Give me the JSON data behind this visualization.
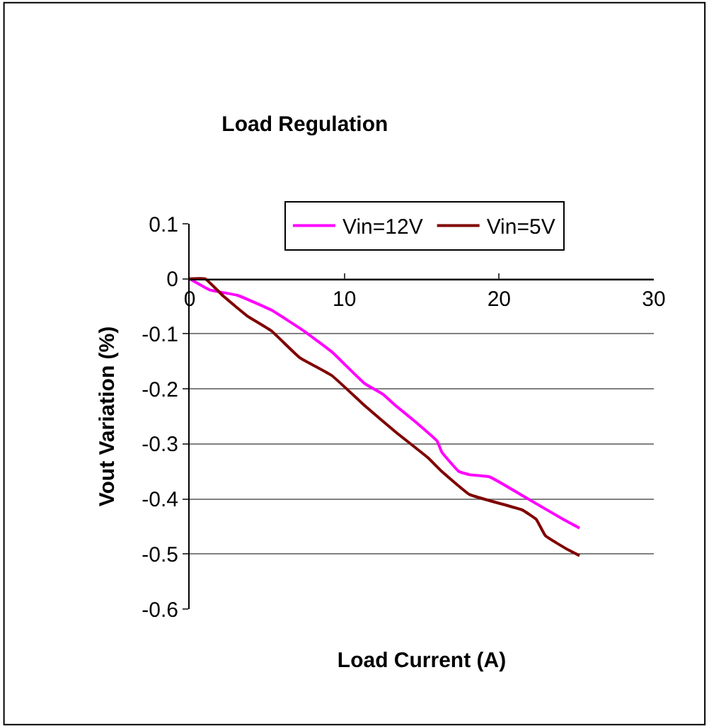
{
  "chart_data": {
    "type": "line",
    "title": "Load Regulation",
    "xlabel": "Load Current (A)",
    "ylabel": "Vout Variation (%)",
    "xlim": [
      0,
      30
    ],
    "xticks": [
      0,
      10,
      20,
      30
    ],
    "ylim": [
      -0.6,
      0.1
    ],
    "yticks": [
      -0.6,
      -0.5,
      -0.4,
      -0.3,
      -0.2,
      -0.1,
      0,
      0.1
    ],
    "grid": "y",
    "legend": "top",
    "marker": "none",
    "line_style": "solid",
    "series": [
      {
        "name": "Vin=12V",
        "color": "#ff00ff",
        "x": [
          0,
          1.3,
          3.1,
          5.3,
          7.4,
          9.2,
          11.3,
          12.5,
          13.3,
          14.6,
          16.0,
          16.3,
          17.4,
          18.1,
          19.4,
          21.7,
          24.2,
          25.2
        ],
        "values": [
          0,
          -0.02,
          -0.03,
          -0.057,
          -0.095,
          -0.133,
          -0.19,
          -0.21,
          -0.23,
          -0.26,
          -0.295,
          -0.315,
          -0.35,
          -0.356,
          -0.36,
          -0.397,
          -0.438,
          -0.453
        ]
      },
      {
        "name": "Vin=5V",
        "color": "#800000",
        "x": [
          0,
          1,
          2.2,
          3.7,
          5.3,
          7.1,
          9.2,
          11.3,
          13.3,
          15.4,
          16.3,
          18.1,
          21.5,
          22.4,
          23,
          24.5,
          25.2
        ],
        "values": [
          0,
          0,
          -0.032,
          -0.067,
          -0.095,
          -0.143,
          -0.176,
          -0.23,
          -0.278,
          -0.325,
          -0.35,
          -0.392,
          -0.42,
          -0.437,
          -0.467,
          -0.493,
          -0.503
        ]
      }
    ]
  }
}
